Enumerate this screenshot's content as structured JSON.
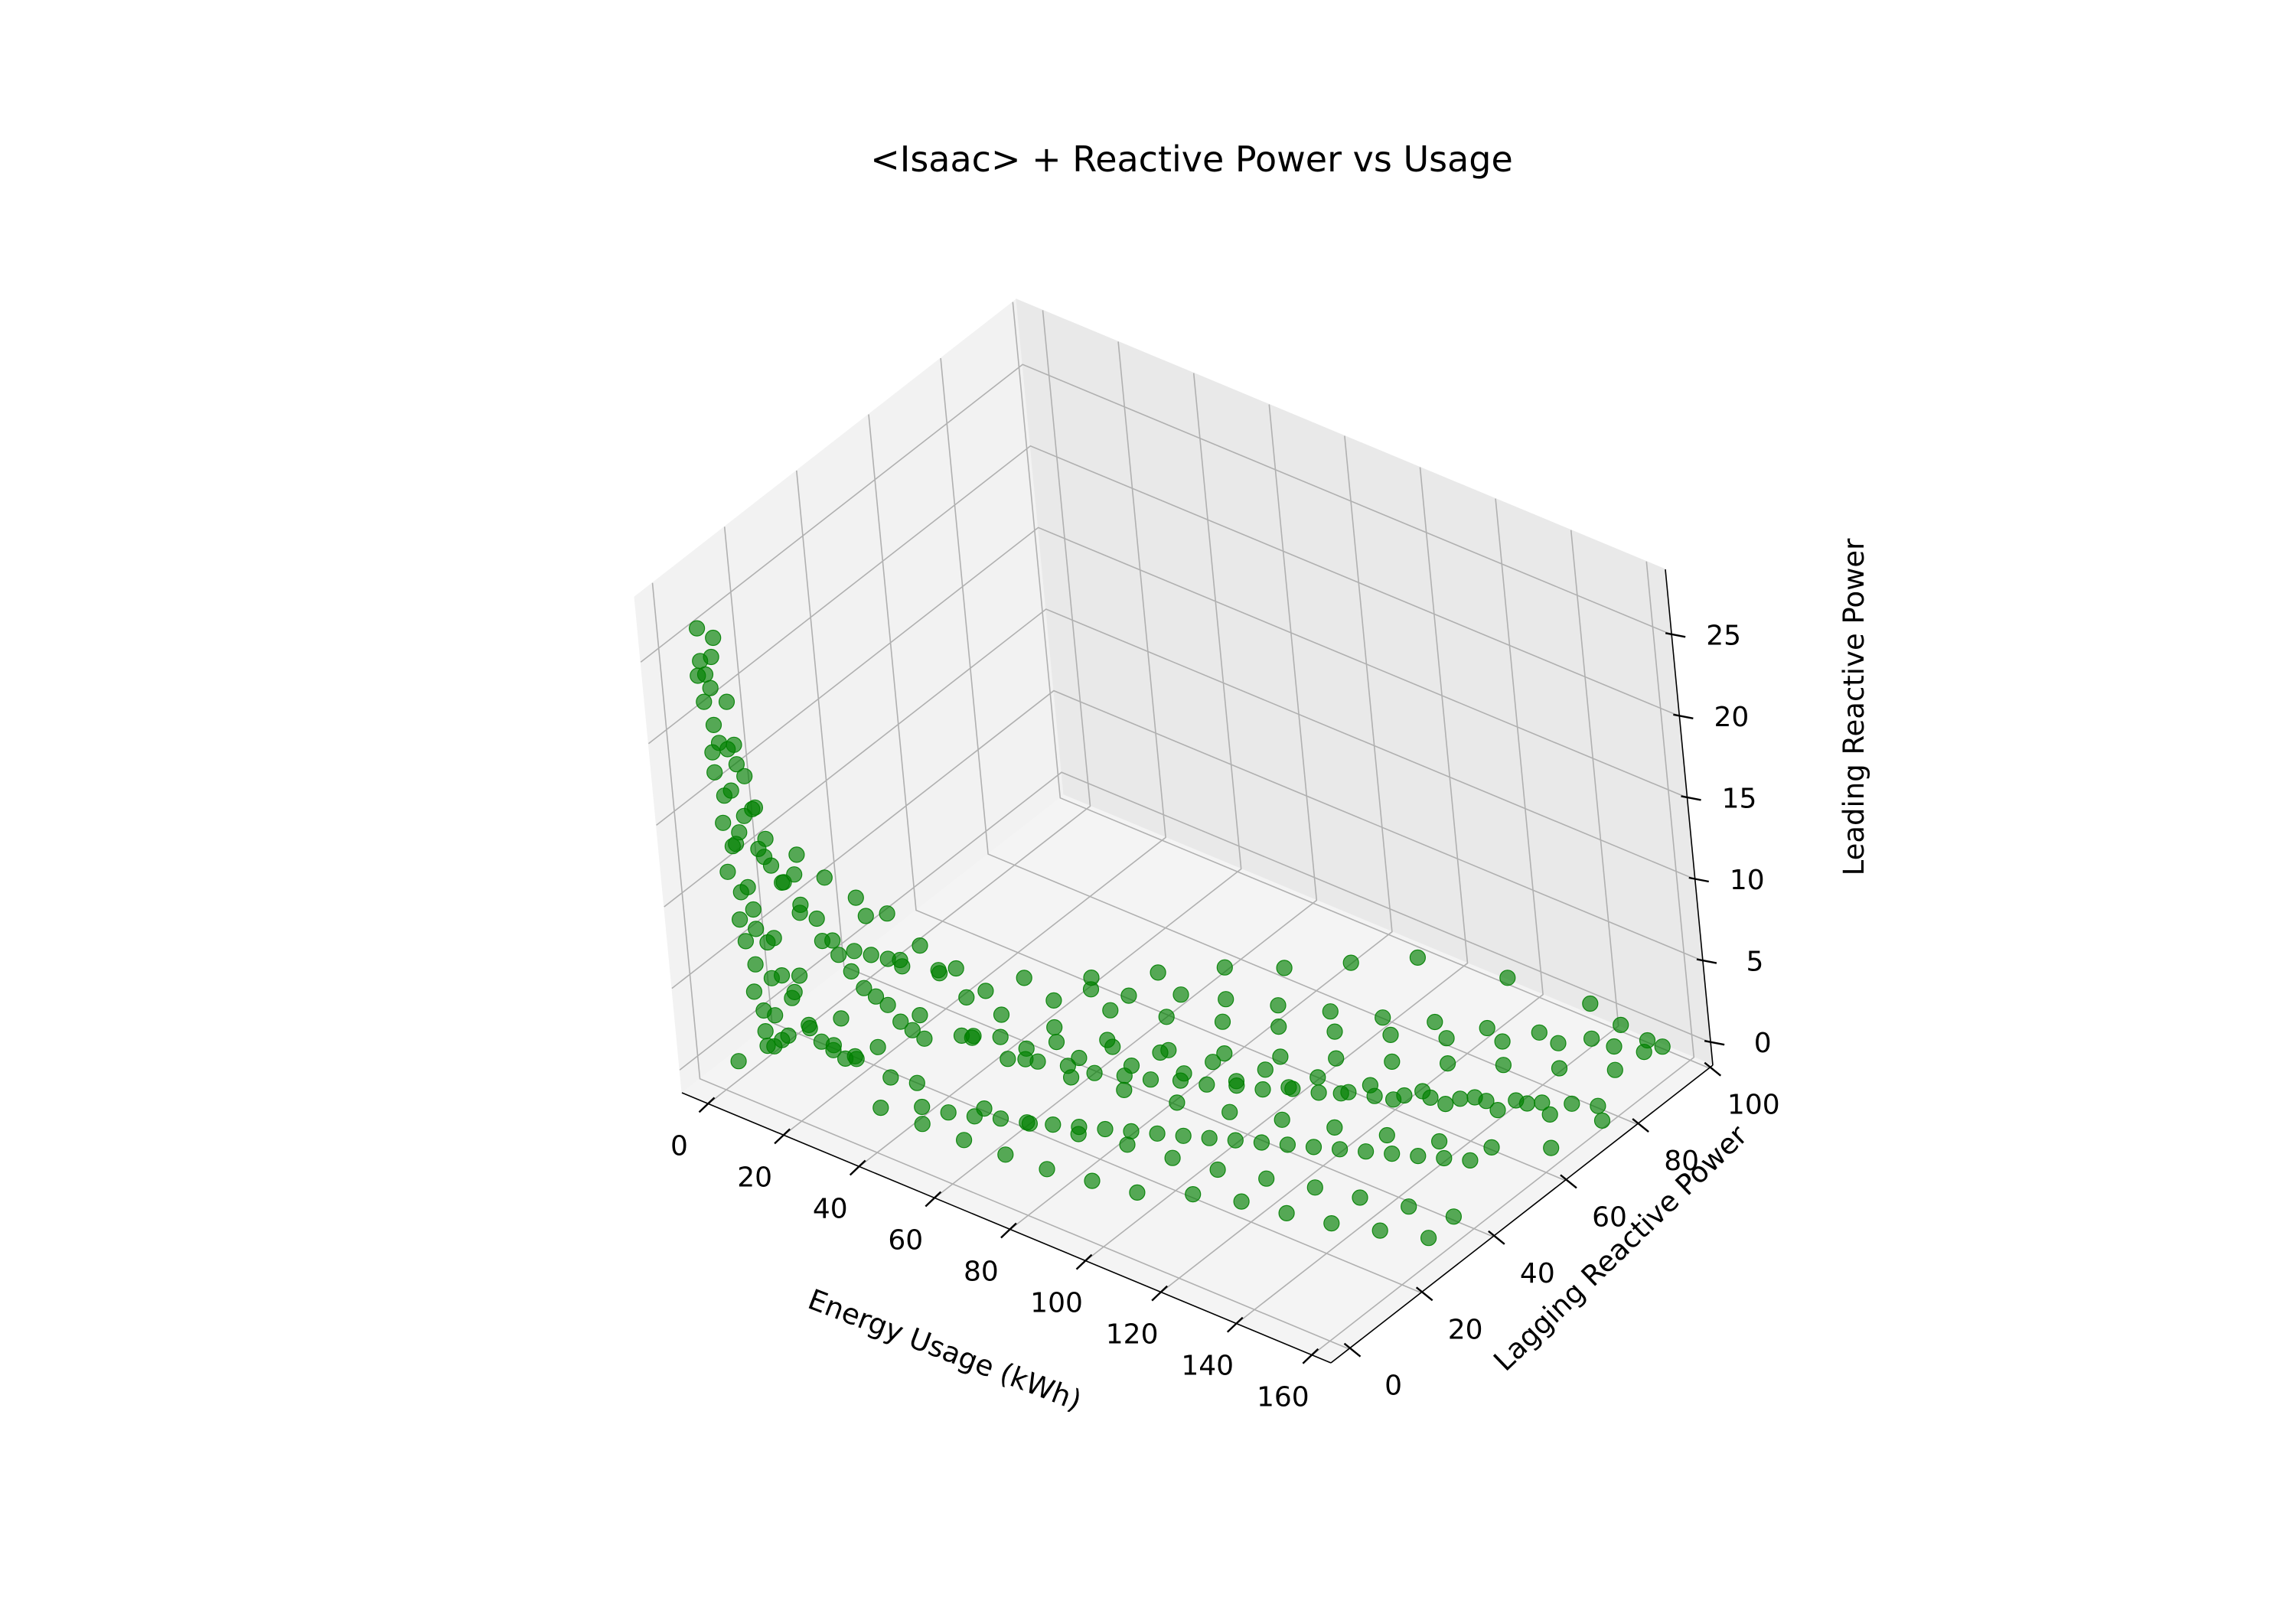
{
  "chart_data": {
    "type": "scatter",
    "projection": "3d",
    "title": "<Isaac> + Reactive Power vs Usage",
    "xlabel": "Energy Usage (kWh)",
    "ylabel": "Lagging Reactive Power",
    "zlabel": "Leading Reactive Power",
    "xlim": [
      -7,
      165
    ],
    "ylim": [
      -5,
      101
    ],
    "zlim": [
      -1.4,
      29
    ],
    "x_ticks": [
      "0",
      "20",
      "40",
      "60",
      "80",
      "100",
      "120",
      "140",
      "160"
    ],
    "y_ticks": [
      "0",
      "20",
      "40",
      "60",
      "80",
      "100"
    ],
    "z_ticks": [
      "0",
      "5",
      "10",
      "15",
      "20",
      "25"
    ],
    "grid": true,
    "marker_color": "#008000",
    "marker_alpha": 0.65,
    "series": [
      {
        "points": [
          [
            3,
            1,
            27
          ],
          [
            3,
            1,
            25
          ],
          [
            3,
            2,
            24
          ],
          [
            3,
            1,
            22.5
          ],
          [
            4,
            2,
            21
          ],
          [
            4,
            1,
            19.5
          ],
          [
            3,
            2,
            18
          ],
          [
            4,
            3,
            16.5
          ],
          [
            4,
            2,
            15
          ],
          [
            5,
            3,
            13.5
          ],
          [
            4,
            2,
            12
          ],
          [
            5,
            4,
            10.5
          ],
          [
            5,
            3,
            9
          ],
          [
            5,
            4,
            7.5
          ],
          [
            6,
            5,
            6
          ],
          [
            6,
            4,
            4.5
          ],
          [
            6,
            6,
            3
          ],
          [
            7,
            5,
            2
          ],
          [
            8,
            6,
            1
          ],
          [
            3,
            3,
            23
          ],
          [
            5,
            2,
            20
          ],
          [
            6,
            3,
            17
          ],
          [
            5,
            5,
            14
          ],
          [
            7,
            4,
            11
          ],
          [
            6,
            6,
            8
          ],
          [
            8,
            7,
            5
          ],
          [
            9,
            6,
            3
          ],
          [
            10,
            8,
            1.5
          ],
          [
            4,
            4,
            26
          ],
          [
            2,
            1,
            24
          ],
          [
            4,
            5,
            19
          ],
          [
            7,
            2,
            14
          ],
          [
            2,
            2,
            0.2
          ],
          [
            4,
            8,
            0.3
          ],
          [
            6,
            10,
            0.5
          ],
          [
            10,
            2,
            16
          ],
          [
            12,
            3,
            14
          ],
          [
            14,
            4,
            13
          ],
          [
            16,
            5,
            12
          ],
          [
            18,
            6,
            12.5
          ],
          [
            20,
            5,
            11
          ],
          [
            22,
            7,
            10
          ],
          [
            24,
            6,
            9
          ],
          [
            26,
            8,
            8
          ],
          [
            28,
            9,
            7
          ],
          [
            30,
            10,
            6
          ],
          [
            32,
            11,
            5.5
          ],
          [
            34,
            12,
            5
          ],
          [
            36,
            13,
            4
          ],
          [
            38,
            14,
            3.5
          ],
          [
            40,
            15,
            3
          ],
          [
            11,
            4,
            8
          ],
          [
            13,
            5,
            6
          ],
          [
            15,
            6,
            5
          ],
          [
            17,
            7,
            3
          ],
          [
            19,
            8,
            2
          ],
          [
            21,
            9,
            1.5
          ],
          [
            23,
            10,
            1
          ],
          [
            25,
            11,
            1
          ],
          [
            9,
            3,
            10
          ],
          [
            15,
            2,
            9
          ],
          [
            20,
            3,
            7
          ],
          [
            12,
            8,
            4
          ],
          [
            14,
            10,
            2
          ],
          [
            18,
            12,
            1
          ],
          [
            25,
            8,
            4
          ],
          [
            30,
            6,
            2.5
          ],
          [
            28,
            14,
            1.5
          ],
          [
            45,
            20,
            2.8
          ],
          [
            50,
            18,
            3.5
          ],
          [
            55,
            22,
            2
          ],
          [
            60,
            25,
            1.8
          ],
          [
            65,
            28,
            1.5
          ],
          [
            70,
            30,
            1.2
          ],
          [
            75,
            33,
            1
          ],
          [
            80,
            35,
            0.9
          ],
          [
            85,
            38,
            0.8
          ],
          [
            90,
            40,
            0.7
          ],
          [
            95,
            43,
            0.6
          ],
          [
            100,
            45,
            0.5
          ],
          [
            105,
            48,
            0.5
          ],
          [
            110,
            50,
            0.4
          ],
          [
            115,
            53,
            0.4
          ],
          [
            120,
            55,
            0.3
          ],
          [
            125,
            58,
            0.3
          ],
          [
            130,
            60,
            0.3
          ],
          [
            135,
            63,
            0.2
          ],
          [
            140,
            65,
            0.2
          ],
          [
            145,
            68,
            0.2
          ],
          [
            150,
            70,
            0.2
          ],
          [
            155,
            73,
            0.1
          ],
          [
            160,
            75,
            0.1
          ],
          [
            35,
            10,
            1
          ],
          [
            40,
            12,
            0.8
          ],
          [
            45,
            8,
            0.5
          ],
          [
            50,
            10,
            0.3
          ],
          [
            55,
            12,
            0.2
          ],
          [
            60,
            14,
            0.2
          ],
          [
            65,
            16,
            0.1
          ],
          [
            70,
            18,
            0.1
          ],
          [
            75,
            20,
            0.1
          ],
          [
            80,
            22,
            0.1
          ],
          [
            85,
            24,
            0.1
          ],
          [
            90,
            26,
            0.1
          ],
          [
            95,
            28,
            0.1
          ],
          [
            100,
            30,
            0.1
          ],
          [
            105,
            32,
            0.1
          ],
          [
            110,
            34,
            0.1
          ],
          [
            115,
            36,
            0.1
          ],
          [
            120,
            38,
            0.1
          ],
          [
            125,
            40,
            0.1
          ],
          [
            130,
            42,
            0.1
          ],
          [
            135,
            44,
            0.1
          ],
          [
            140,
            46,
            0.1
          ],
          [
            145,
            48,
            0.1
          ],
          [
            150,
            50,
            0.1
          ],
          [
            45,
            30,
            1
          ],
          [
            55,
            35,
            0.8
          ],
          [
            65,
            40,
            0.6
          ],
          [
            75,
            45,
            0.5
          ],
          [
            85,
            50,
            0.4
          ],
          [
            95,
            55,
            0.3
          ],
          [
            105,
            60,
            0.3
          ],
          [
            115,
            65,
            0.2
          ],
          [
            125,
            70,
            0.2
          ],
          [
            135,
            75,
            0.2
          ],
          [
            145,
            80,
            0.1
          ],
          [
            155,
            85,
            0.1
          ],
          [
            60,
            10,
            1.5
          ],
          [
            70,
            12,
            1.2
          ],
          [
            80,
            15,
            1
          ],
          [
            90,
            18,
            0.8
          ],
          [
            100,
            20,
            0.6
          ],
          [
            110,
            22,
            0.5
          ],
          [
            120,
            25,
            0.4
          ],
          [
            130,
            28,
            0.3
          ],
          [
            140,
            30,
            0.3
          ],
          [
            150,
            33,
            0.2
          ],
          [
            160,
            35,
            0.2
          ],
          [
            50,
            40,
            2
          ],
          [
            60,
            45,
            1.5
          ],
          [
            70,
            50,
            1.2
          ],
          [
            80,
            55,
            1
          ],
          [
            90,
            60,
            0.8
          ],
          [
            100,
            65,
            0.6
          ],
          [
            110,
            70,
            0.5
          ],
          [
            120,
            75,
            0.4
          ],
          [
            130,
            80,
            0.3
          ],
          [
            140,
            85,
            0.3
          ],
          [
            150,
            90,
            0.2
          ],
          [
            158,
            95,
            0.1
          ],
          [
            42,
            25,
            4
          ],
          [
            48,
            28,
            3
          ],
          [
            58,
            32,
            2.5
          ],
          [
            68,
            36,
            2
          ],
          [
            78,
            40,
            1.5
          ],
          [
            88,
            44,
            1.2
          ],
          [
            98,
            48,
            1
          ],
          [
            108,
            52,
            0.8
          ],
          [
            118,
            56,
            0.6
          ],
          [
            128,
            60,
            0.5
          ],
          [
            138,
            64,
            0.4
          ],
          [
            148,
            68,
            0.3
          ],
          [
            62,
            20,
            3
          ],
          [
            72,
            22,
            2.5
          ],
          [
            82,
            26,
            2
          ],
          [
            92,
            30,
            1.5
          ],
          [
            102,
            34,
            1.2
          ],
          [
            112,
            38,
            1
          ],
          [
            122,
            42,
            0.8
          ],
          [
            132,
            46,
            0.6
          ],
          [
            142,
            50,
            0.5
          ],
          [
            152,
            54,
            0.4
          ],
          [
            162,
            60,
            0.3
          ],
          [
            30,
            20,
            6
          ],
          [
            35,
            25,
            5
          ],
          [
            38,
            18,
            8
          ],
          [
            33,
            15,
            10
          ],
          [
            28,
            12,
            11
          ],
          [
            22,
            10,
            12
          ],
          [
            26,
            16,
            9
          ],
          [
            32,
            28,
            4
          ],
          [
            40,
            32,
            3
          ],
          [
            52,
            48,
            1.5
          ],
          [
            58,
            52,
            1
          ],
          [
            66,
            58,
            0.8
          ],
          [
            74,
            62,
            0.6
          ],
          [
            84,
            66,
            0.5
          ],
          [
            94,
            70,
            0.4
          ],
          [
            104,
            74,
            0.3
          ],
          [
            114,
            78,
            0.3
          ],
          [
            124,
            82,
            0.2
          ],
          [
            134,
            86,
            0.2
          ],
          [
            144,
            90,
            0.1
          ],
          [
            154,
            95,
            0.1
          ],
          [
            110,
            15,
            0.2
          ],
          [
            120,
            18,
            0.2
          ],
          [
            130,
            20,
            0.1
          ],
          [
            140,
            22,
            0.1
          ],
          [
            150,
            25,
            0.1
          ],
          [
            160,
            28,
            0.1
          ],
          [
            100,
            10,
            0.2
          ],
          [
            90,
            8,
            0.3
          ],
          [
            80,
            6,
            0.4
          ],
          [
            70,
            5,
            0.5
          ],
          [
            60,
            4,
            0.6
          ],
          [
            50,
            3,
            0.8
          ],
          [
            40,
            2,
            1
          ],
          [
            96,
            92,
            0.1
          ],
          [
            116,
            96,
            0.1
          ],
          [
            136,
            98,
            0.1
          ],
          [
            146,
            96,
            0.1
          ],
          [
            156,
            92,
            0.1
          ],
          [
            86,
            84,
            0.2
          ],
          [
            76,
            76,
            0.3
          ],
          [
            66,
            70,
            0.4
          ],
          [
            56,
            62,
            0.5
          ],
          [
            46,
            54,
            0.6
          ],
          [
            36,
            46,
            1
          ],
          [
            26,
            38,
            2
          ],
          [
            16,
            30,
            3
          ],
          [
            20,
            22,
            5
          ],
          [
            24,
            26,
            4
          ],
          [
            14,
            18,
            6
          ],
          [
            10,
            14,
            8
          ],
          [
            8,
            12,
            10
          ],
          [
            7,
            9,
            12
          ],
          [
            6,
            8,
            15
          ],
          [
            5,
            6,
            18
          ],
          [
            5,
            5,
            22
          ],
          [
            4,
            3,
            25
          ],
          [
            8,
            3,
            20
          ],
          [
            9,
            4,
            18
          ],
          [
            10,
            5,
            16
          ],
          [
            11,
            6,
            14
          ],
          [
            16,
            9,
            13
          ],
          [
            24,
            14,
            7
          ],
          [
            34,
            20,
            3
          ],
          [
            44,
            24,
            2
          ],
          [
            54,
            28,
            1.5
          ],
          [
            64,
            32,
            1.2
          ],
          [
            74,
            36,
            1
          ],
          [
            84,
            40,
            0.8
          ],
          [
            94,
            44,
            0.6
          ],
          [
            104,
            48,
            0.5
          ],
          [
            114,
            52,
            0.4
          ],
          [
            124,
            56,
            0.3
          ],
          [
            134,
            60,
            0.3
          ],
          [
            144,
            64,
            0.2
          ],
          [
            154,
            68,
            0.2
          ],
          [
            164,
            72,
            0.1
          ]
        ]
      }
    ]
  }
}
